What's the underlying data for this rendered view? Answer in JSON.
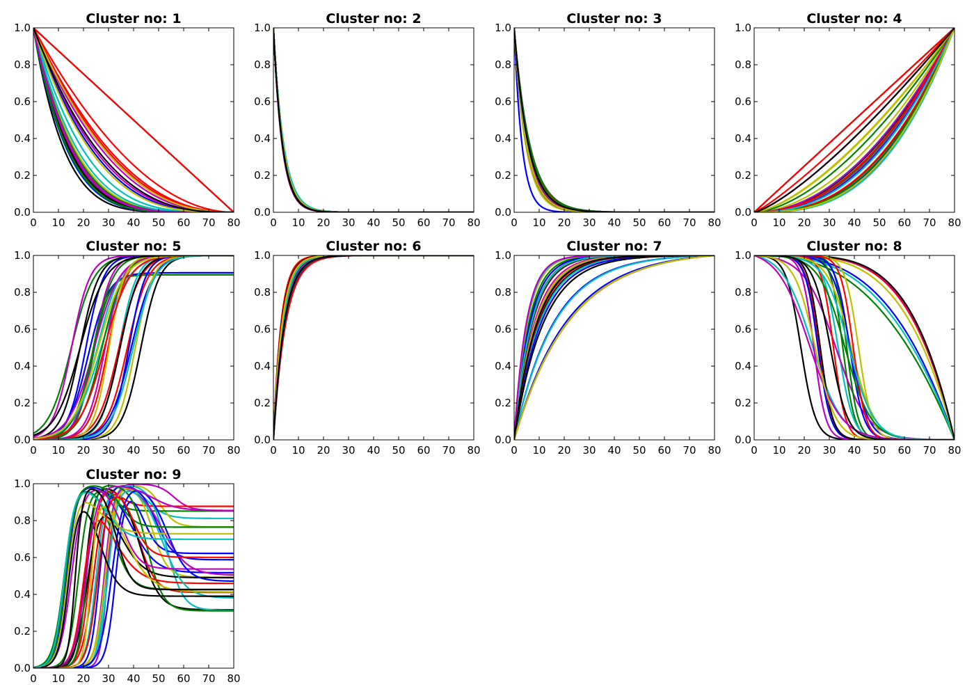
{
  "chart_data": [
    {
      "type": "line",
      "title": "Cluster no: 1",
      "family": "decay_mixed",
      "xlim": [
        0,
        80
      ],
      "ylim": [
        0.0,
        1.0
      ],
      "xticks": [
        0,
        10,
        20,
        30,
        40,
        50,
        60,
        70,
        80
      ],
      "yticks": [
        0.0,
        0.2,
        0.4,
        0.6,
        0.8,
        1.0
      ]
    },
    {
      "type": "line",
      "title": "Cluster no: 2",
      "family": "exp_decay_fast",
      "xlim": [
        0,
        80
      ],
      "ylim": [
        0.0,
        1.0
      ],
      "xticks": [
        0,
        10,
        20,
        30,
        40,
        50,
        60,
        70,
        80
      ],
      "yticks": [
        0.0,
        0.2,
        0.4,
        0.6,
        0.8,
        1.0
      ]
    },
    {
      "type": "line",
      "title": "Cluster no: 3",
      "family": "exp_decay",
      "xlim": [
        0,
        80
      ],
      "ylim": [
        0.0,
        1.0
      ],
      "xticks": [
        0,
        10,
        20,
        30,
        40,
        50,
        60,
        70,
        80
      ],
      "yticks": [
        0.0,
        0.2,
        0.4,
        0.6,
        0.8,
        1.0
      ]
    },
    {
      "type": "line",
      "title": "Cluster no: 4",
      "family": "power_growth",
      "xlim": [
        0,
        80
      ],
      "ylim": [
        0.0,
        1.0
      ],
      "xticks": [
        0,
        10,
        20,
        30,
        40,
        50,
        60,
        70,
        80
      ],
      "yticks": [
        0.0,
        0.2,
        0.4,
        0.6,
        0.8,
        1.0
      ]
    },
    {
      "type": "line",
      "title": "Cluster no: 5",
      "family": "sigmoid_rise",
      "xlim": [
        0,
        80
      ],
      "ylim": [
        0.0,
        1.0
      ],
      "xticks": [
        0,
        10,
        20,
        30,
        40,
        50,
        60,
        70,
        80
      ],
      "yticks": [
        0.0,
        0.2,
        0.4,
        0.6,
        0.8,
        1.0
      ]
    },
    {
      "type": "line",
      "title": "Cluster no: 6",
      "family": "exp_rise_fast",
      "xlim": [
        0,
        80
      ],
      "ylim": [
        0.0,
        1.0
      ],
      "xticks": [
        0,
        10,
        20,
        30,
        40,
        50,
        60,
        70,
        80
      ],
      "yticks": [
        0.0,
        0.2,
        0.4,
        0.6,
        0.8,
        1.0
      ]
    },
    {
      "type": "line",
      "title": "Cluster no: 7",
      "family": "exp_rise",
      "xlim": [
        0,
        80
      ],
      "ylim": [
        0.0,
        1.0
      ],
      "xticks": [
        0,
        10,
        20,
        30,
        40,
        50,
        60,
        70,
        80
      ],
      "yticks": [
        0.0,
        0.2,
        0.4,
        0.6,
        0.8,
        1.0
      ]
    },
    {
      "type": "line",
      "title": "Cluster no: 8",
      "family": "sigmoid_fall",
      "xlim": [
        0,
        80
      ],
      "ylim": [
        0.0,
        1.0
      ],
      "xticks": [
        0,
        10,
        20,
        30,
        40,
        50,
        60,
        70,
        80
      ],
      "yticks": [
        0.0,
        0.2,
        0.4,
        0.6,
        0.8,
        1.0
      ]
    },
    {
      "type": "line",
      "title": "Cluster no: 9",
      "family": "rise_peak_settle",
      "xlim": [
        0,
        80
      ],
      "ylim": [
        0.0,
        1.0
      ],
      "xticks": [
        0,
        10,
        20,
        30,
        40,
        50,
        60,
        70,
        80
      ],
      "yticks": [
        0.0,
        0.2,
        0.4,
        0.6,
        0.8,
        1.0
      ]
    }
  ],
  "colors": [
    "#0000ff",
    "#008000",
    "#ff0000",
    "#00bfbf",
    "#bf00bf",
    "#bfbf00",
    "#000000"
  ],
  "grid": false,
  "legend": "none"
}
